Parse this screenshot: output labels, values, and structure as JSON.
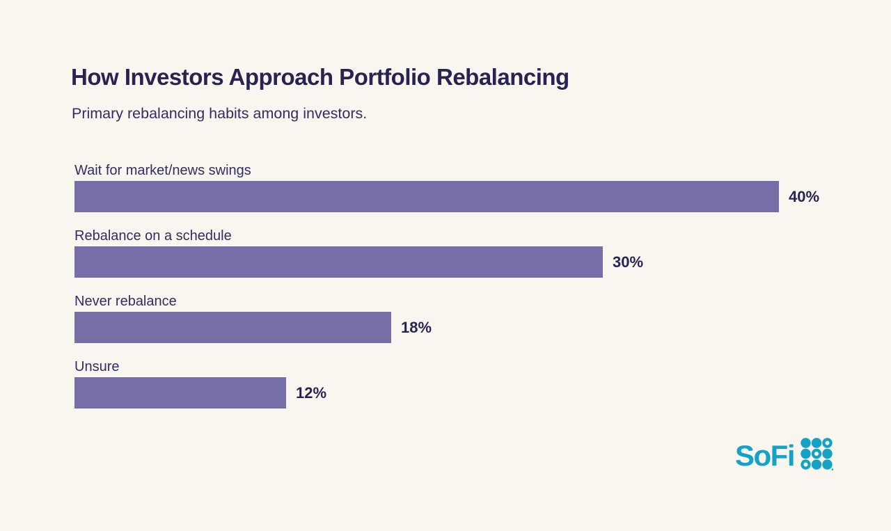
{
  "header": {
    "title": "How Investors Approach Portfolio Rebalancing",
    "subtitle": "Primary rebalancing habits among investors."
  },
  "chart_data": {
    "type": "bar",
    "orientation": "horizontal",
    "title": "How Investors Approach Portfolio Rebalancing",
    "subtitle": "Primary rebalancing habits among investors.",
    "categories": [
      "Wait for market/news swings",
      "Rebalance on a schedule",
      "Never rebalance",
      "Unsure"
    ],
    "values": [
      40,
      30,
      18,
      12
    ],
    "value_labels": [
      "40%",
      "30%",
      "18%",
      "12%"
    ],
    "xlim": [
      0,
      40
    ],
    "xlabel": "",
    "ylabel": "",
    "grid": false,
    "legend": false,
    "bar_color": "#756ea7",
    "value_label_position": "right-of-bar",
    "category_label_position": "above-bar"
  },
  "branding": {
    "logo_text": "SoFi",
    "logo_color": "#14a2c5",
    "logo_dot_pattern": [
      [
        "filled",
        "filled",
        "ring"
      ],
      [
        "filled",
        "ring",
        "filled"
      ],
      [
        "ring",
        "filled",
        "filled"
      ]
    ]
  },
  "colors": {
    "background": "#f8f6ef",
    "title_text": "#2b2252",
    "label_text": "#352b61",
    "bar_fill": "#756ea7",
    "accent_teal": "#14a2c5"
  }
}
